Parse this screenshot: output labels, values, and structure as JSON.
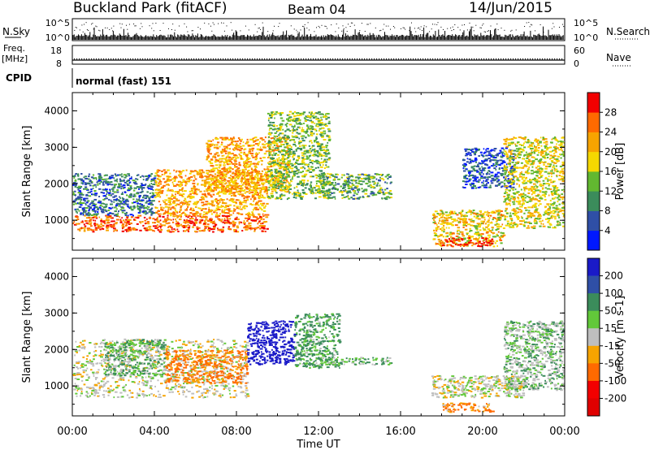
{
  "header": {
    "site_title": "Buckland Park (fitACF)",
    "beam_label": "Beam 04",
    "date": "14/Jun/2015"
  },
  "side_labels": {
    "nsky": "N.Sky",
    "nsky_ticks": [
      "10^5",
      "10^0"
    ],
    "nsearch": "N.Search",
    "nsearch_ticks": [
      "10^5",
      "10^0"
    ],
    "freq": "Freq.",
    "freq_unit": "[MHz]",
    "freq_ticks": [
      "18",
      "8"
    ],
    "nave": "Nave",
    "nave_ticks": [
      "60",
      "0"
    ],
    "cpid": "CPID",
    "mode": "normal (fast) 151"
  },
  "chart_data": [
    {
      "type": "heatmap",
      "parameter": "Power",
      "ylabel": "Slant Range [km]",
      "xlabel": "Time UT",
      "x_ticks": [
        "00:00",
        "04:00",
        "08:00",
        "12:00",
        "16:00",
        "20:00",
        "00:00"
      ],
      "x_range_hours": [
        0,
        24
      ],
      "ylim": [
        180,
        4500
      ],
      "y_ticks": [
        "1000",
        "2000",
        "3000",
        "4000"
      ],
      "colorbar": {
        "label": "Power [dB]",
        "tick_labels": [
          "4",
          "8",
          "12",
          "16",
          "20",
          "24",
          "28"
        ],
        "range": [
          0,
          32
        ],
        "colors": [
          "#0018ff",
          "#2f4fa6",
          "#3b8c5b",
          "#62b830",
          "#f5d800",
          "#f7a400",
          "#ff6a00",
          "#f20000"
        ]
      },
      "echo_regions": [
        {
          "t": [
            0.0,
            9.5
          ],
          "r": [
            700,
            1150
          ],
          "value": 26
        },
        {
          "t": [
            0.0,
            4.0
          ],
          "r": [
            1150,
            2300
          ],
          "value": 8
        },
        {
          "t": [
            4.0,
            9.5
          ],
          "r": [
            1150,
            2400
          ],
          "value": 22
        },
        {
          "t": [
            6.5,
            10.5
          ],
          "r": [
            1800,
            3300
          ],
          "value": 22
        },
        {
          "t": [
            9.5,
            12.5
          ],
          "r": [
            1600,
            4000
          ],
          "value": 14
        },
        {
          "t": [
            12.0,
            15.5
          ],
          "r": [
            1600,
            2300
          ],
          "value": 12
        },
        {
          "t": [
            17.5,
            21.0
          ],
          "r": [
            300,
            1300
          ],
          "value": 20
        },
        {
          "t": [
            18.0,
            20.5
          ],
          "r": [
            300,
            550
          ],
          "value": 28
        },
        {
          "t": [
            19.0,
            21.5
          ],
          "r": [
            1900,
            3000
          ],
          "value": 6
        },
        {
          "t": [
            21.0,
            24.0
          ],
          "r": [
            800,
            3300
          ],
          "value": 18
        }
      ]
    },
    {
      "type": "heatmap",
      "parameter": "Velocity",
      "ylabel": "Slant Range [km]",
      "xlabel": "Time UT",
      "x_ticks": [
        "00:00",
        "04:00",
        "08:00",
        "12:00",
        "16:00",
        "20:00",
        "00:00"
      ],
      "x_range_hours": [
        0,
        24
      ],
      "ylim": [
        180,
        4500
      ],
      "y_ticks": [
        "1000",
        "2000",
        "3000",
        "4000"
      ],
      "colorbar": {
        "label": "Velocity [m s-1]",
        "tick_labels": [
          "200",
          "100",
          "50",
          "15",
          "-15",
          "-50",
          "-100",
          "-200"
        ],
        "colors": [
          "#1a1ac8",
          "#2f4fa6",
          "#3b8c5b",
          "#62c83a",
          "#bebebe",
          "#f7a400",
          "#ff6a00",
          "#f20000",
          "#e00000"
        ]
      },
      "echo_regions": [
        {
          "t": [
            0.0,
            8.5
          ],
          "r": [
            700,
            2300
          ],
          "value": 0
        },
        {
          "t": [
            1.5,
            4.5
          ],
          "r": [
            1300,
            2300
          ],
          "value": 30
        },
        {
          "t": [
            4.5,
            8.5
          ],
          "r": [
            1100,
            2000
          ],
          "value": -40
        },
        {
          "t": [
            8.5,
            10.8
          ],
          "r": [
            1600,
            2800
          ],
          "value": 180
        },
        {
          "t": [
            10.8,
            13.0
          ],
          "r": [
            1500,
            3000
          ],
          "value": 40
        },
        {
          "t": [
            12.0,
            15.5
          ],
          "r": [
            1600,
            1800
          ],
          "value": 30
        },
        {
          "t": [
            17.5,
            22.0
          ],
          "r": [
            700,
            1300
          ],
          "value": 0
        },
        {
          "t": [
            18.0,
            20.5
          ],
          "r": [
            300,
            550
          ],
          "value": -40
        },
        {
          "t": [
            21.0,
            24.0
          ],
          "r": [
            900,
            2800
          ],
          "value": 20
        }
      ]
    }
  ]
}
